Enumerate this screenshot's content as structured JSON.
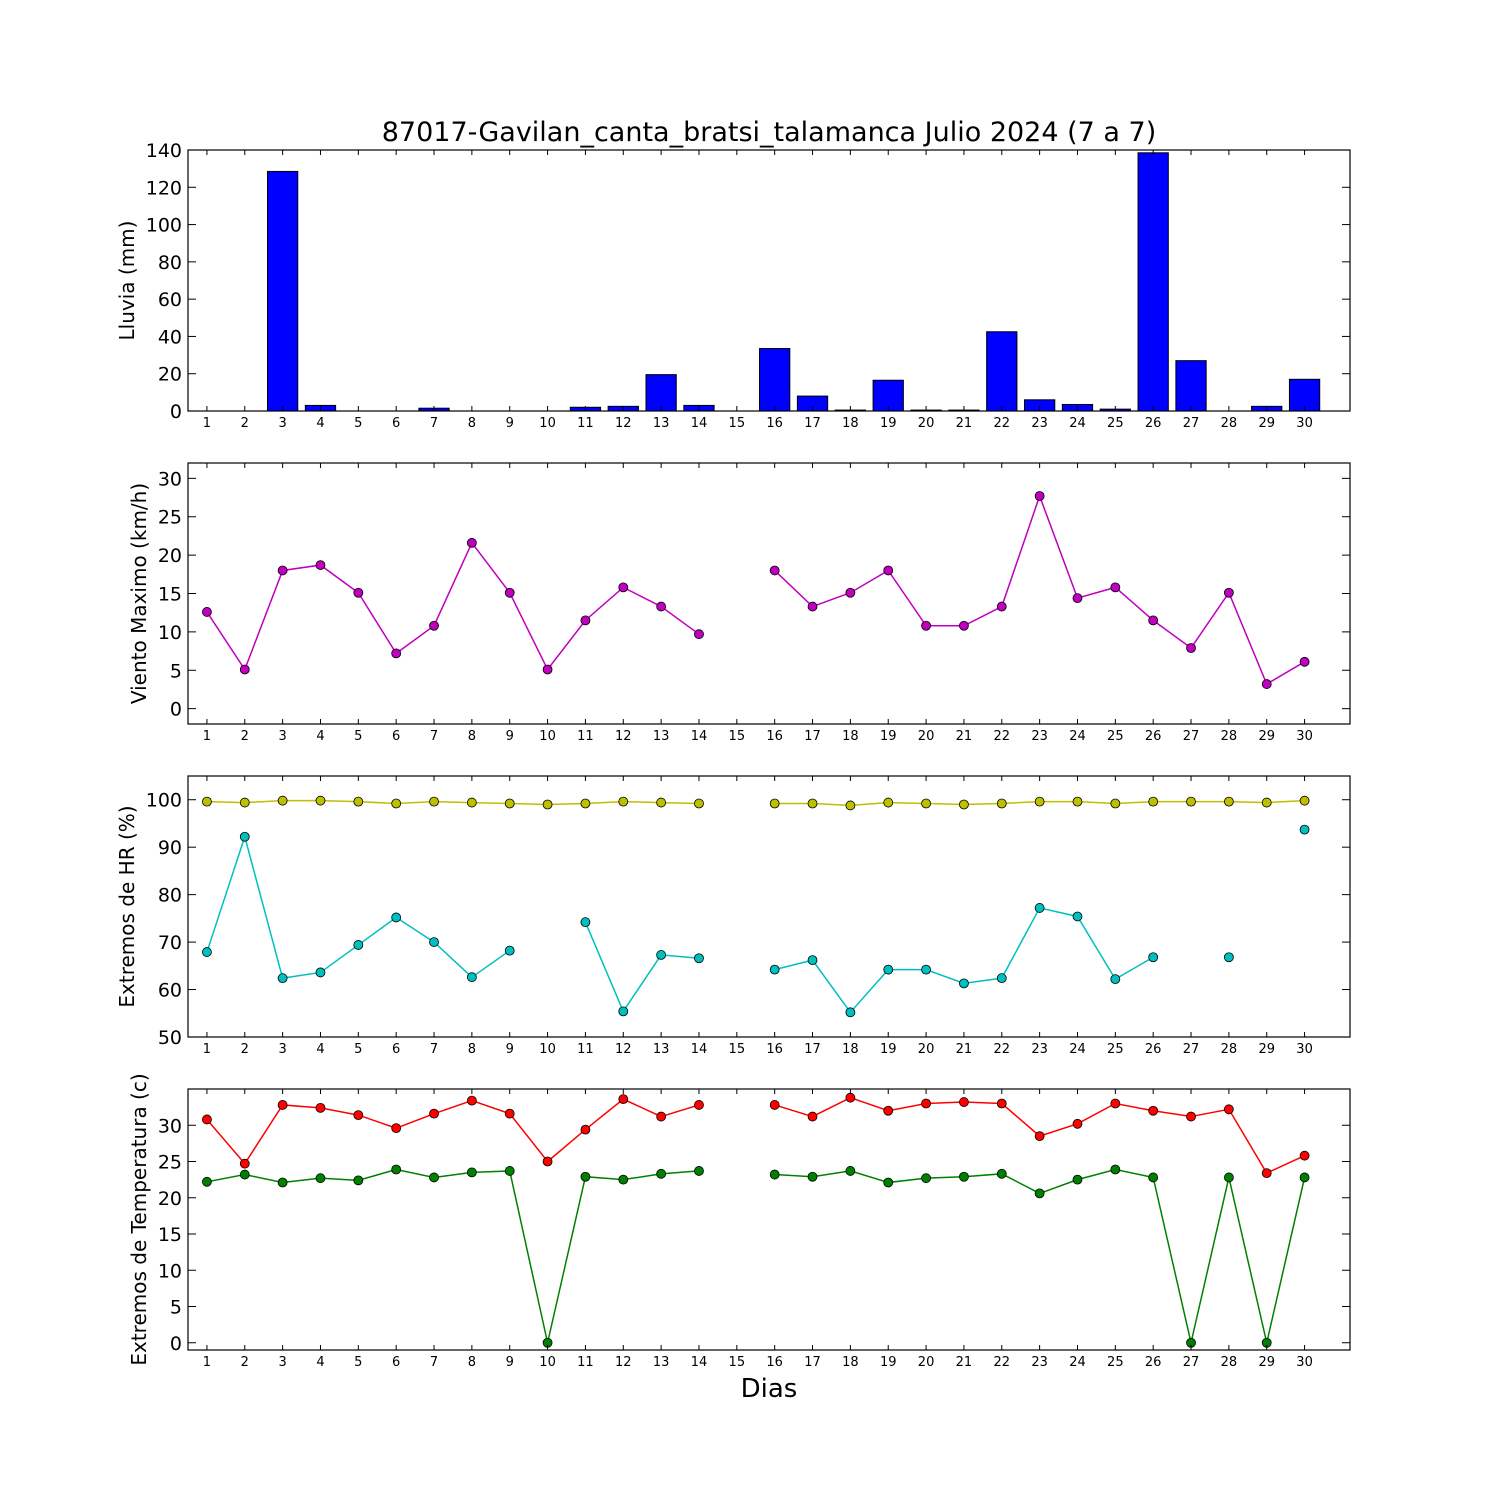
{
  "figure": {
    "title": "87017-Gavilan_canta_bratsi_talamanca Julio 2024  (7 a 7)",
    "xlabel": "Dias"
  },
  "chart_data": [
    {
      "type": "bar",
      "ylabel": "Lluvia (mm)",
      "categories": [
        "1",
        "2",
        "3",
        "4",
        "5",
        "6",
        "7",
        "8",
        "9",
        "10",
        "11",
        "12",
        "13",
        "14",
        "15",
        "16",
        "17",
        "18",
        "19",
        "20",
        "21",
        "22",
        "23",
        "24",
        "25",
        "26",
        "27",
        "28",
        "29",
        "30"
      ],
      "values": [
        0,
        0,
        128.5,
        3,
        0,
        0,
        1.5,
        0,
        0,
        0,
        2,
        2.5,
        19.5,
        3,
        0,
        33.5,
        8,
        0.5,
        16.5,
        0.5,
        0.5,
        42.5,
        6,
        3.5,
        1,
        138.5,
        27,
        0,
        2.5,
        17
      ],
      "color": "#0000ff",
      "ylim": [
        0,
        140
      ],
      "yticks": [
        0,
        20,
        40,
        60,
        80,
        100,
        120,
        140
      ]
    },
    {
      "type": "line",
      "ylabel": "Viento Maximo (km/h)",
      "x": [
        1,
        2,
        3,
        4,
        5,
        6,
        7,
        8,
        9,
        10,
        11,
        12,
        13,
        14,
        15,
        16,
        17,
        18,
        19,
        20,
        21,
        22,
        23,
        24,
        25,
        26,
        27,
        28,
        29,
        30
      ],
      "series": [
        {
          "color": "#bf00bf",
          "values": [
            12.6,
            5.1,
            18.0,
            18.7,
            15.1,
            7.2,
            10.8,
            21.6,
            15.1,
            5.1,
            11.5,
            15.8,
            13.3,
            9.7,
            null,
            18.0,
            13.3,
            15.1,
            18.0,
            10.8,
            10.8,
            13.3,
            27.7,
            14.4,
            15.8,
            11.5,
            7.9,
            15.1,
            3.2,
            6.1
          ]
        }
      ],
      "ylim": [
        -2,
        32
      ],
      "yticks": [
        0,
        5,
        10,
        15,
        20,
        25,
        30
      ]
    },
    {
      "type": "line",
      "ylabel": "Extremos de HR (%)",
      "x": [
        1,
        2,
        3,
        4,
        5,
        6,
        7,
        8,
        9,
        10,
        11,
        12,
        13,
        14,
        15,
        16,
        17,
        18,
        19,
        20,
        21,
        22,
        23,
        24,
        25,
        26,
        27,
        28,
        29,
        30
      ],
      "series": [
        {
          "color": "#bfbf00",
          "values": [
            99.6,
            99.4,
            99.8,
            99.8,
            99.6,
            99.2,
            99.6,
            99.4,
            99.2,
            99.0,
            99.2,
            99.6,
            99.4,
            99.2,
            null,
            99.2,
            99.2,
            98.8,
            99.4,
            99.2,
            99.0,
            99.2,
            99.6,
            99.6,
            99.2,
            99.6,
            99.6,
            99.6,
            99.4,
            99.8
          ]
        },
        {
          "color": "#00bfbf",
          "values": [
            67.9,
            92.2,
            62.4,
            63.6,
            69.4,
            75.2,
            70.0,
            62.6,
            68.2,
            null,
            74.2,
            55.4,
            67.3,
            66.6,
            null,
            64.2,
            66.2,
            55.2,
            64.2,
            64.2,
            61.3,
            62.4,
            77.2,
            75.4,
            62.2,
            66.8,
            null,
            66.8,
            null,
            93.7
          ]
        }
      ],
      "ylim": [
        50,
        105
      ],
      "yticks": [
        50,
        60,
        70,
        80,
        90,
        100
      ]
    },
    {
      "type": "line",
      "ylabel": "Extremos de Temperatura (c)",
      "x": [
        1,
        2,
        3,
        4,
        5,
        6,
        7,
        8,
        9,
        10,
        11,
        12,
        13,
        14,
        15,
        16,
        17,
        18,
        19,
        20,
        21,
        22,
        23,
        24,
        25,
        26,
        27,
        28,
        29,
        30
      ],
      "series": [
        {
          "color": "#ff0000",
          "values": [
            30.8,
            24.7,
            32.8,
            32.4,
            31.4,
            29.6,
            31.6,
            33.4,
            31.6,
            25.0,
            29.4,
            33.6,
            31.2,
            32.8,
            null,
            32.8,
            31.2,
            33.8,
            32.0,
            33.0,
            33.2,
            33.0,
            28.5,
            30.2,
            33.0,
            32.0,
            31.2,
            32.2,
            23.4,
            25.8
          ]
        },
        {
          "color": "#008000",
          "values": [
            22.2,
            23.2,
            22.1,
            22.7,
            22.4,
            23.9,
            22.8,
            23.5,
            23.7,
            0,
            22.9,
            22.5,
            23.3,
            23.7,
            null,
            23.2,
            22.9,
            23.7,
            22.1,
            22.7,
            22.9,
            23.3,
            20.6,
            22.5,
            23.9,
            22.8,
            0,
            22.8,
            0,
            22.8
          ]
        }
      ],
      "ylim": [
        -1,
        35
      ],
      "yticks": [
        0,
        5,
        10,
        15,
        20,
        25,
        30
      ]
    }
  ]
}
